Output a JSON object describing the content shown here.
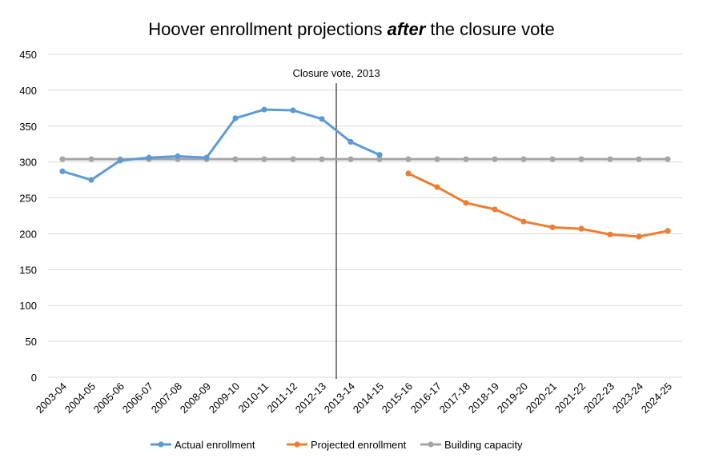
{
  "chart_data": {
    "type": "line",
    "title": {
      "before": "Hoover enrollment projections ",
      "emphasis": "after",
      "after": " the closure vote"
    },
    "xlabel": "",
    "ylabel": "",
    "ylim": [
      0,
      450
    ],
    "yticks": [
      0,
      50,
      100,
      150,
      200,
      250,
      300,
      350,
      400,
      450
    ],
    "grid": true,
    "legend_position": "bottom",
    "categories": [
      "2003-04",
      "2004-05",
      "2005-06",
      "2006-07",
      "2007-08",
      "2008-09",
      "2009-10",
      "2010-11",
      "2011-12",
      "2012-13",
      "2013-14",
      "2014-15",
      "2015-16",
      "2016-17",
      "2017-18",
      "2018-19",
      "2019-20",
      "2020-21",
      "2021-22",
      "2022-23",
      "2023-24",
      "2024-25"
    ],
    "series": [
      {
        "name": "Actual enrollment",
        "color": "#5B9BD5",
        "values": [
          287,
          275,
          302,
          306,
          308,
          306,
          361,
          373,
          372,
          360,
          328,
          310,
          null,
          null,
          null,
          null,
          null,
          null,
          null,
          null,
          null,
          null
        ]
      },
      {
        "name": "Projected enrollment",
        "color": "#ED7D31",
        "values": [
          null,
          null,
          null,
          null,
          null,
          null,
          null,
          null,
          null,
          null,
          null,
          null,
          284,
          265,
          243,
          234,
          217,
          209,
          207,
          199,
          196,
          204
        ]
      },
      {
        "name": "Building capacity",
        "color": "#A5A5A5",
        "values": [
          304,
          304,
          304,
          304,
          304,
          304,
          304,
          304,
          304,
          304,
          304,
          304,
          304,
          304,
          304,
          304,
          304,
          304,
          304,
          304,
          304,
          304
        ]
      }
    ],
    "annotations": [
      {
        "text": "Closure vote, 2013",
        "x_between": [
          "2012-13",
          "2013-14"
        ],
        "type": "vertical-line"
      }
    ]
  }
}
